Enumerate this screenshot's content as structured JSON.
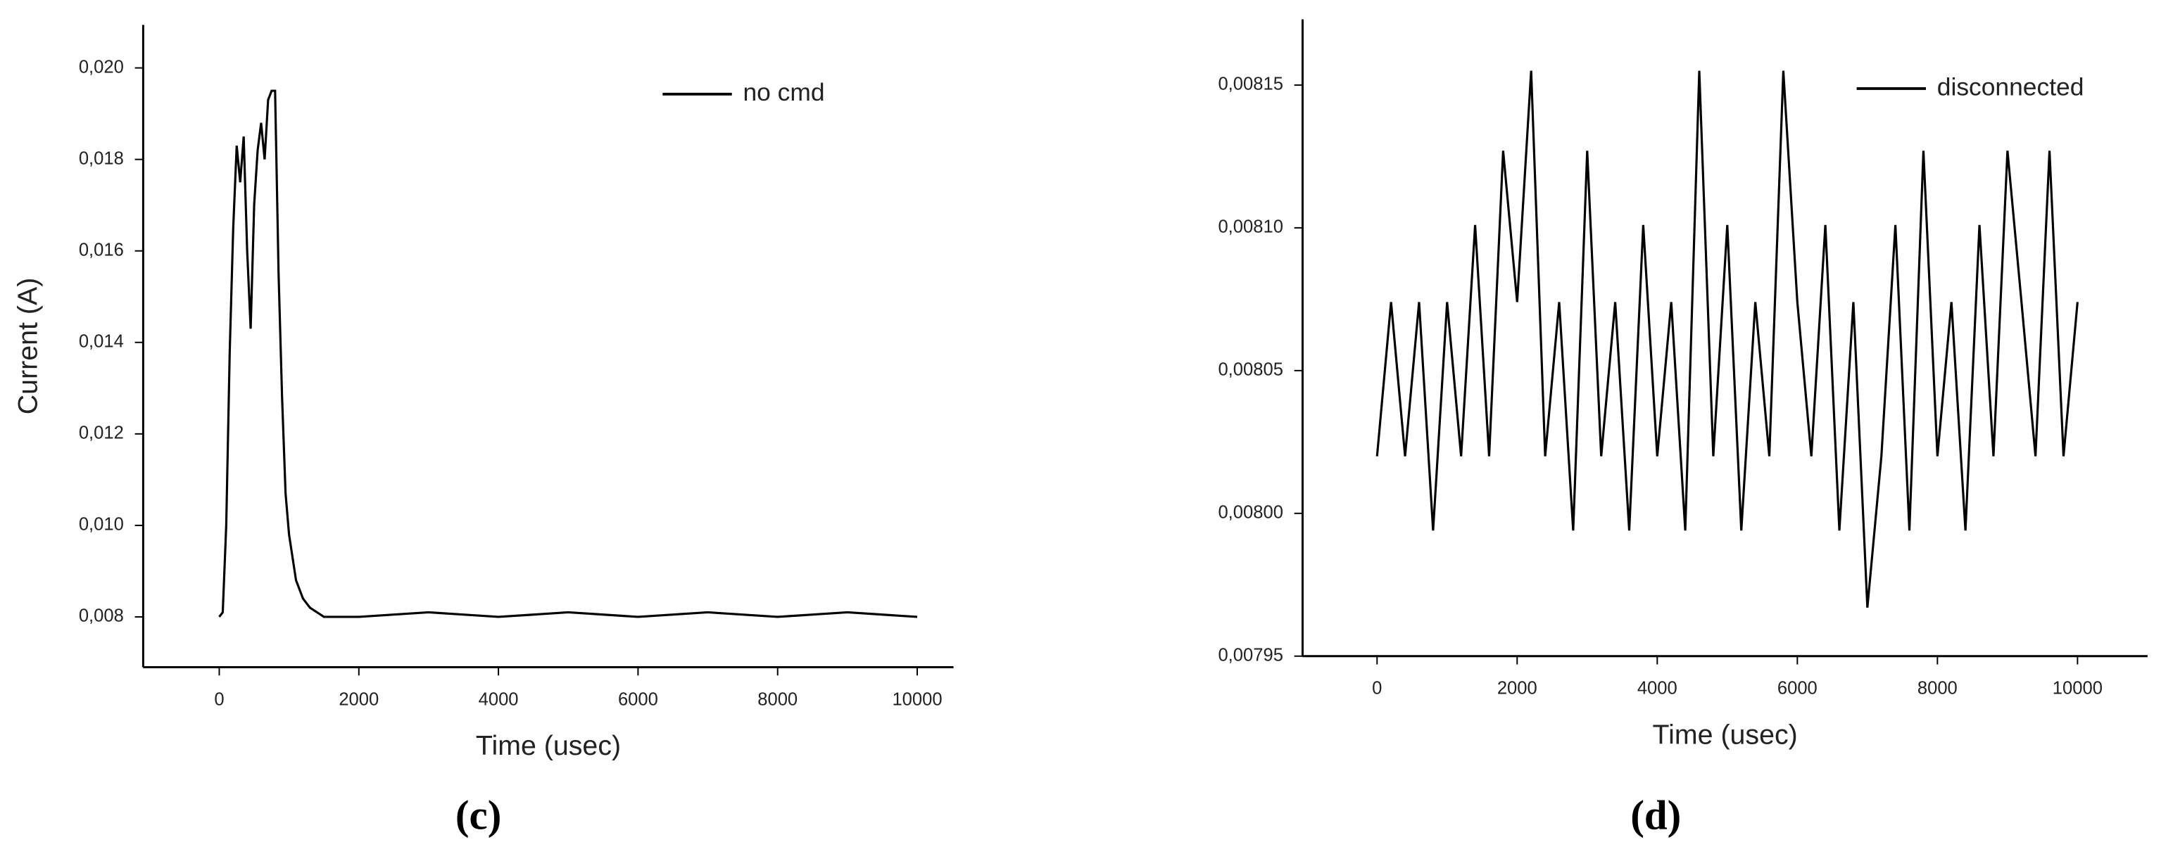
{
  "chart_data": [
    {
      "type": "line",
      "caption": "(c)",
      "x_label": "Time (usec)",
      "y_label": "Current (A)",
      "legend": "upper right",
      "xlim": [
        -1090,
        10520
      ],
      "ylim": [
        0.0069,
        0.02094
      ],
      "xticks": [
        0,
        2000,
        4000,
        6000,
        8000,
        10000
      ],
      "yticks": [
        {
          "value": 0.008,
          "label": "0,008"
        },
        {
          "value": 0.01,
          "label": "0,010"
        },
        {
          "value": 0.012,
          "label": "0,012"
        },
        {
          "value": 0.014,
          "label": "0,014"
        },
        {
          "value": 0.016,
          "label": "0,016"
        },
        {
          "value": 0.018,
          "label": "0,018"
        },
        {
          "value": 0.02,
          "label": "0,020"
        }
      ],
      "x": [
        0,
        50,
        100,
        150,
        200,
        250,
        300,
        350,
        400,
        450,
        500,
        550,
        600,
        650,
        700,
        750,
        800,
        850,
        900,
        950,
        1000,
        1100,
        1200,
        1300,
        1400,
        1500,
        2000,
        3000,
        4000,
        5000,
        6000,
        7000,
        8000,
        9000,
        10000
      ],
      "series": [
        {
          "name": "no cmd",
          "color": "#000000",
          "values": [
            0.008,
            0.0081,
            0.01,
            0.0138,
            0.0165,
            0.0183,
            0.0175,
            0.0185,
            0.016,
            0.0143,
            0.017,
            0.0182,
            0.0188,
            0.018,
            0.0193,
            0.0195,
            0.0195,
            0.0155,
            0.0128,
            0.0107,
            0.0098,
            0.0088,
            0.0084,
            0.0082,
            0.0081,
            0.008,
            0.008,
            0.0081,
            0.008,
            0.0081,
            0.008,
            0.0081,
            0.008,
            0.0081,
            0.008
          ]
        }
      ]
    },
    {
      "type": "line",
      "caption": "(d)",
      "x_label": "Time (usec)",
      "legend": "upper right",
      "xlim": [
        -1063,
        11000
      ],
      "ylim": [
        0.00795,
        0.008173
      ],
      "xticks": [
        0,
        2000,
        4000,
        6000,
        8000,
        10000
      ],
      "yticks": [
        {
          "value": 0.00795,
          "label": "0,00795"
        },
        {
          "value": 0.008,
          "label": "0,00800"
        },
        {
          "value": 0.00805,
          "label": "0,00805"
        },
        {
          "value": 0.0081,
          "label": "0,00810"
        },
        {
          "value": 0.00815,
          "label": "0,00815"
        }
      ],
      "x": [
        0,
        200,
        400,
        600,
        800,
        1000,
        1200,
        1400,
        1600,
        1800,
        2000,
        2200,
        2400,
        2600,
        2800,
        3000,
        3200,
        3400,
        3600,
        3800,
        4000,
        4200,
        4400,
        4600,
        4800,
        5000,
        5200,
        5400,
        5600,
        5800,
        6000,
        6200,
        6400,
        6600,
        6800,
        7000,
        7200,
        7400,
        7600,
        7800,
        8000,
        8200,
        8400,
        8600,
        8800,
        9000,
        9200,
        9400,
        9600,
        9800,
        10000
      ],
      "series": [
        {
          "name": "disconnected",
          "color": "#000000",
          "values": [
            0.00802,
            0.008074,
            0.00802,
            0.008074,
            0.007994,
            0.008074,
            0.00802,
            0.008101,
            0.00802,
            0.008127,
            0.008074,
            0.008155,
            0.00802,
            0.008074,
            0.007994,
            0.008127,
            0.00802,
            0.008074,
            0.007994,
            0.008101,
            0.00802,
            0.008074,
            0.007994,
            0.008155,
            0.00802,
            0.008101,
            0.007994,
            0.008074,
            0.00802,
            0.008155,
            0.008074,
            0.00802,
            0.008101,
            0.007994,
            0.008074,
            0.007967,
            0.00802,
            0.008101,
            0.007994,
            0.008127,
            0.00802,
            0.008074,
            0.007994,
            0.008101,
            0.00802,
            0.008127,
            0.008074,
            0.00802,
            0.008127,
            0.00802,
            0.008074
          ]
        }
      ]
    }
  ]
}
